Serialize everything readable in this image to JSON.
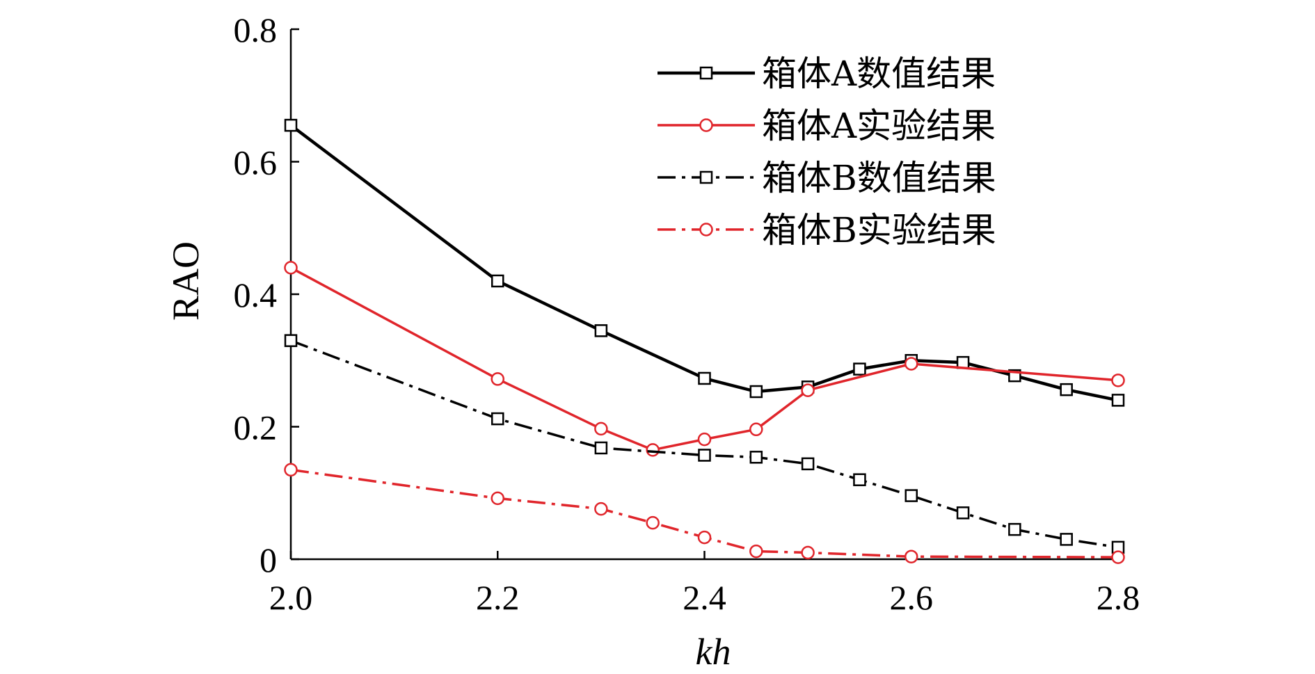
{
  "chart_data": {
    "type": "line",
    "xlabel": "kh",
    "ylabel": "RAO",
    "xlim": [
      2.0,
      2.8
    ],
    "ylim": [
      0,
      0.8
    ],
    "xticks": [
      2.0,
      2.2,
      2.4,
      2.6,
      2.8
    ],
    "xtick_labels": [
      "2.0",
      "2.2",
      "2.4",
      "2.6",
      "2.8"
    ],
    "yticks": [
      0,
      0.2,
      0.4,
      0.6,
      0.8
    ],
    "ytick_labels": [
      "0",
      "0.2",
      "0.4",
      "0.6",
      "0.8"
    ],
    "grid": false,
    "legend_position": "top-right",
    "series": [
      {
        "name": "箱体A数值结果",
        "color": "#000000",
        "line": "solid",
        "marker": "square",
        "x": [
          2.0,
          2.2,
          2.3,
          2.4,
          2.45,
          2.5,
          2.55,
          2.6,
          2.65,
          2.7,
          2.75,
          2.8
        ],
        "y": [
          0.655,
          0.42,
          0.345,
          0.273,
          0.253,
          0.26,
          0.287,
          0.3,
          0.297,
          0.277,
          0.256,
          0.24
        ]
      },
      {
        "name": "箱体A实验结果",
        "color": "#e0252b",
        "line": "solid",
        "marker": "circle",
        "x": [
          2.0,
          2.2,
          2.3,
          2.35,
          2.4,
          2.45,
          2.5,
          2.6,
          2.8
        ],
        "y": [
          0.44,
          0.272,
          0.197,
          0.165,
          0.181,
          0.196,
          0.255,
          0.295,
          0.27
        ]
      },
      {
        "name": "箱体B数值结果",
        "color": "#000000",
        "line": "dashdot",
        "marker": "square",
        "x": [
          2.0,
          2.2,
          2.3,
          2.4,
          2.45,
          2.5,
          2.55,
          2.6,
          2.65,
          2.7,
          2.75,
          2.8
        ],
        "y": [
          0.33,
          0.212,
          0.168,
          0.157,
          0.154,
          0.144,
          0.12,
          0.096,
          0.07,
          0.045,
          0.03,
          0.018
        ]
      },
      {
        "name": "箱体B实验结果",
        "color": "#e0252b",
        "line": "dashdot",
        "marker": "circle",
        "x": [
          2.0,
          2.2,
          2.3,
          2.35,
          2.4,
          2.45,
          2.5,
          2.6,
          2.8
        ],
        "y": [
          0.135,
          0.092,
          0.076,
          0.055,
          0.033,
          0.012,
          0.01,
          0.004,
          0.003
        ]
      }
    ]
  }
}
